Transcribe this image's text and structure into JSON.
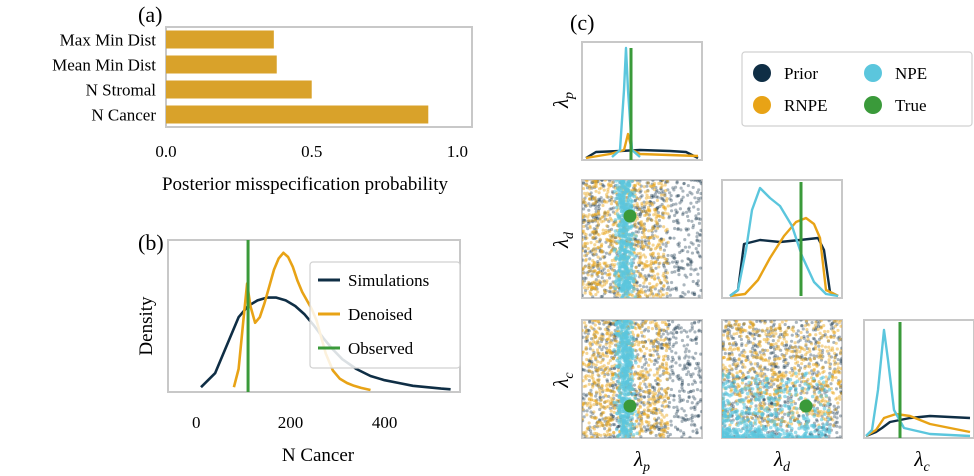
{
  "colors": {
    "prior": "#0f2e45",
    "rnpe": "#e8a316",
    "npe": "#5bc6dd",
    "true": "#3a9a3a",
    "bar": "#d9a22a",
    "frame": "#c8c8c8"
  },
  "panel_labels": {
    "a": "(a)",
    "b": "(b)",
    "c": "(c)"
  },
  "chart_data": [
    {
      "id": "a",
      "type": "bar",
      "orientation": "horizontal",
      "categories": [
        "Max Min Dist",
        "Mean Min Dist",
        "N Stromal",
        "N Cancer"
      ],
      "values": [
        0.37,
        0.38,
        0.5,
        0.9
      ],
      "xlabel": "Posterior misspecification probability",
      "xlim": [
        0,
        1.05
      ],
      "xticks": [
        "0.0",
        "0.5",
        "1.0"
      ]
    },
    {
      "id": "b",
      "type": "line",
      "xlabel": "N Cancer",
      "ylabel": "Density",
      "xlim": [
        -60,
        560
      ],
      "xticks": [
        "0",
        "200",
        "400"
      ],
      "legend": [
        "Simulations",
        "Denoised",
        "Observed"
      ],
      "observed": 110,
      "series": [
        {
          "name": "Simulations",
          "x": [
            10,
            40,
            70,
            90,
            110,
            130,
            150,
            170,
            190,
            210,
            230,
            250,
            270,
            290,
            310,
            340,
            370,
            400,
            430,
            460,
            490,
            520,
            540
          ],
          "y": [
            0.02,
            0.12,
            0.36,
            0.52,
            0.6,
            0.64,
            0.66,
            0.66,
            0.64,
            0.6,
            0.54,
            0.46,
            0.37,
            0.29,
            0.22,
            0.15,
            0.1,
            0.07,
            0.05,
            0.03,
            0.02,
            0.01,
            0.005
          ]
        },
        {
          "name": "Denoised",
          "x": [
            80,
            90,
            100,
            108,
            115,
            125,
            135,
            145,
            155,
            165,
            175,
            185,
            195,
            205,
            215,
            225,
            235,
            245,
            255,
            265,
            275,
            290,
            305,
            320,
            335,
            350,
            370
          ],
          "y": [
            0.02,
            0.15,
            0.5,
            0.76,
            0.6,
            0.48,
            0.52,
            0.62,
            0.74,
            0.86,
            0.94,
            0.98,
            0.95,
            0.88,
            0.78,
            0.7,
            0.64,
            0.58,
            0.5,
            0.38,
            0.26,
            0.14,
            0.08,
            0.05,
            0.03,
            0.015,
            0.0
          ]
        }
      ]
    },
    {
      "id": "c",
      "type": "scatter",
      "title": "",
      "axis_labels": [
        "λp",
        "λd",
        "λc"
      ],
      "legend": [
        "Prior",
        "RNPE",
        "NPE",
        "True"
      ]
    }
  ]
}
